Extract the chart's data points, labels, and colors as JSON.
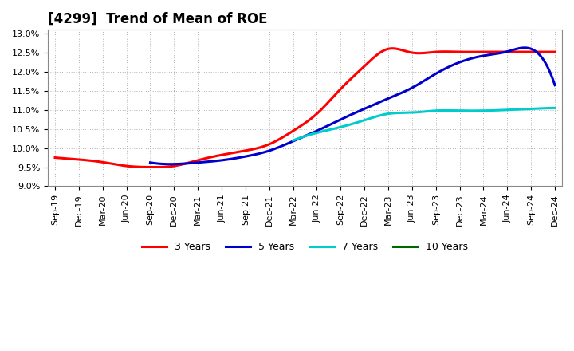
{
  "title": "[4299]  Trend of Mean of ROE",
  "background_color": "#ffffff",
  "plot_background_color": "#ffffff",
  "grid_color": "#b0b0b0",
  "ylim": [
    0.09,
    0.131
  ],
  "yticks": [
    0.09,
    0.095,
    0.1,
    0.105,
    0.11,
    0.115,
    0.12,
    0.125,
    0.13
  ],
  "x_labels": [
    "Sep-19",
    "Dec-19",
    "Mar-20",
    "Jun-20",
    "Sep-20",
    "Dec-20",
    "Mar-21",
    "Jun-21",
    "Sep-21",
    "Dec-21",
    "Mar-22",
    "Jun-22",
    "Sep-22",
    "Dec-22",
    "Mar-23",
    "Jun-23",
    "Sep-23",
    "Dec-23",
    "Mar-24",
    "Jun-24",
    "Sep-24",
    "Dec-24"
  ],
  "series": {
    "3 Years": {
      "color": "#ff0000",
      "data": [
        0.0975,
        0.097,
        0.0963,
        0.0953,
        0.095,
        0.0953,
        0.0968,
        0.0982,
        0.0993,
        0.101,
        0.1045,
        0.109,
        0.1155,
        0.1215,
        0.126,
        0.125,
        0.1252,
        0.1252,
        0.1252,
        0.1252,
        0.1252,
        0.1252
      ]
    },
    "5 Years": {
      "color": "#0000cc",
      "data": [
        null,
        null,
        null,
        null,
        0.0962,
        0.0958,
        0.0962,
        0.0968,
        0.0978,
        0.0993,
        0.1018,
        0.1045,
        0.1075,
        0.1103,
        0.113,
        0.1158,
        0.1195,
        0.1225,
        0.1242,
        0.1253,
        0.126,
        0.1165
      ]
    },
    "7 Years": {
      "color": "#00cccc",
      "data": [
        null,
        null,
        null,
        null,
        null,
        null,
        null,
        null,
        null,
        null,
        0.102,
        0.104,
        0.1055,
        0.1073,
        0.109,
        0.1093,
        0.1098,
        0.1098,
        0.1098,
        0.11,
        0.1103,
        0.1105
      ]
    },
    "10 Years": {
      "color": "#006600",
      "data": [
        null,
        null,
        null,
        null,
        null,
        null,
        null,
        null,
        null,
        null,
        null,
        null,
        null,
        null,
        null,
        null,
        null,
        null,
        null,
        null,
        null,
        null
      ]
    }
  },
  "legend_labels": [
    "3 Years",
    "5 Years",
    "7 Years",
    "10 Years"
  ],
  "legend_colors": [
    "#ff0000",
    "#0000cc",
    "#00cccc",
    "#006600"
  ],
  "title_fontsize": 12,
  "tick_fontsize": 8
}
